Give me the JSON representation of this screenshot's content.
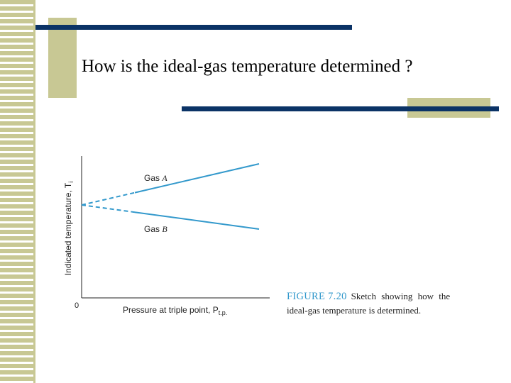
{
  "slide": {
    "title": "How is the ideal-gas temperature determined ?"
  },
  "colors": {
    "accent_bar": "#0b3366",
    "accent_block": "#c8c894",
    "line": "#3399cc",
    "figure_label": "#3399cc"
  },
  "chart_data": {
    "type": "line",
    "title": "",
    "xlabel": "Pressure at triple point, P",
    "xlabel_subscript": "t.p.",
    "ylabel": "Indicated temperature, T",
    "ylabel_subscript": "i",
    "origin_label": "0",
    "xlim": [
      0,
      1
    ],
    "ylim": [
      0,
      1
    ],
    "grid": false,
    "series": [
      {
        "name": "Gas A",
        "label_prefix": "Gas ",
        "label_italic": "A",
        "extrapolated_x": [
          0,
          0.3
        ],
        "measured_x": [
          0.3,
          1.0
        ],
        "x": [
          0,
          1.0
        ],
        "y": [
          0.655,
          0.945
        ]
      },
      {
        "name": "Gas B",
        "label_prefix": "Gas ",
        "label_italic": "B",
        "extrapolated_x": [
          0,
          0.3
        ],
        "measured_x": [
          0.3,
          1.0
        ],
        "x": [
          0,
          1.0
        ],
        "y": [
          0.655,
          0.485
        ]
      }
    ]
  },
  "caption": {
    "figure_label": "FIGURE 7.20",
    "line1": "Sketch showing how the",
    "line2": "ideal-gas temperature is determined."
  }
}
